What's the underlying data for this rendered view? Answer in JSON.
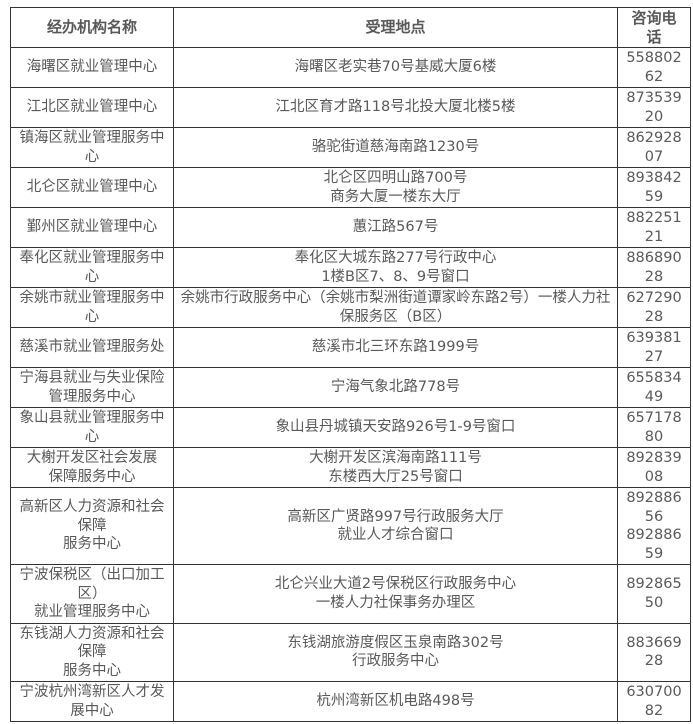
{
  "colors": {
    "text": "#595959",
    "border": "#333333",
    "background": "#ffffff"
  },
  "table": {
    "headers": {
      "agency": "经办机构名称",
      "location": "受理地点",
      "phone": "咨询电\n话"
    },
    "rows": [
      {
        "name": "海曙区就业管理中心",
        "address": "海曙区老实巷70号基威大厦6楼",
        "phone": "558802\n62"
      },
      {
        "name": "江北区就业管理中心",
        "address": "江北区育才路118号北投大厦北楼5楼",
        "phone": "873539\n20"
      },
      {
        "name": "镇海区就业管理服务中\n心",
        "address": "骆驼街道慈海南路1230号",
        "phone": "862928\n07"
      },
      {
        "name": "北仑区就业管理中心",
        "address": "北仑区四明山路700号\n商务大厦一楼东大厅",
        "phone": "893842\n59"
      },
      {
        "name": "鄞州区就业管理中心",
        "address": "蕙江路567号",
        "phone": "882251\n21"
      },
      {
        "name": "奉化区就业管理服务中\n心",
        "address": "奉化区大城东路277号行政中心\n1楼B区7、8、9号窗口",
        "phone": "886890\n28"
      },
      {
        "name": "余姚市就业管理服务中\n心",
        "address": "余姚市行政服务中心（余姚市梨洲街道谭家岭东路2号）一楼人力社\n保服务区（B区）",
        "phone": "627290\n28"
      },
      {
        "name": "慈溪市就业管理服务处",
        "address": "慈溪市北三环东路1999号",
        "phone": "639381\n27"
      },
      {
        "name": "宁海县就业与失业保险\n管理服务中心",
        "address": "宁海气象北路778号",
        "phone": "655834\n49"
      },
      {
        "name": "象山县就业管理服务中\n心",
        "address": "象山县丹城镇天安路926号1-9号窗口",
        "phone": "657178\n80"
      },
      {
        "name": "大榭开发区社会发展\n保障服务中心",
        "address": "大榭开发区滨海南路111号\n东楼西大厅25号窗口",
        "phone": "892839\n08"
      },
      {
        "name": "高新区人力资源和社会\n保障\n服务中心",
        "address": "高新区广贤路997号行政服务大厅\n就业人才综合窗口",
        "phone": "892886\n56\n892886\n59"
      },
      {
        "name": "宁波保税区（出口加工\n区）\n就业管理服务中心",
        "address": "北仑兴业大道2号保税区行政服务中心\n一楼人力社保事务办理区",
        "phone": "892865\n50"
      },
      {
        "name": "东钱湖人力资源和社会\n保障\n服务中心",
        "address": "东钱湖旅游度假区玉泉南路302号\n行政服务中心",
        "phone": "883669\n28"
      },
      {
        "name": "宁波杭州湾新区人才发\n展中心",
        "address": "杭州湾新区机电路498号",
        "phone": "630700\n82"
      }
    ]
  }
}
